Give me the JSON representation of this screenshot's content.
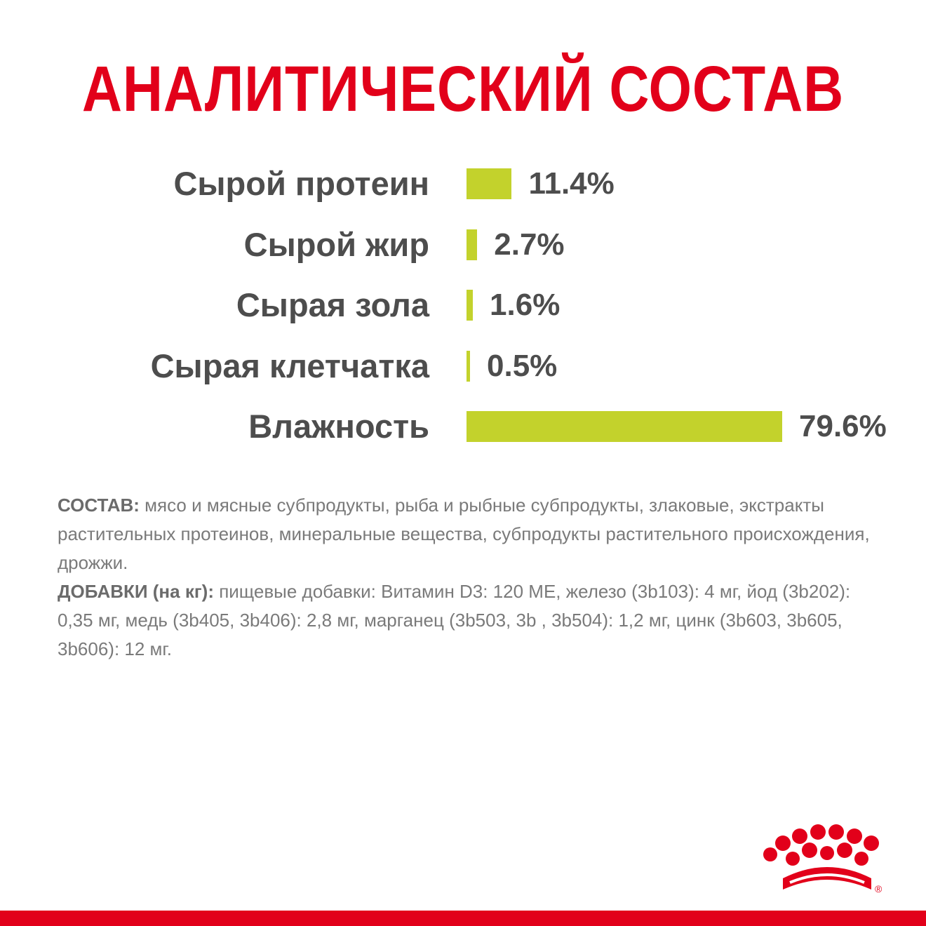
{
  "title": "АНАЛИТИЧЕСКИЙ СОСТАВ",
  "colors": {
    "title": "#e2001a",
    "bar": "#c3d22c",
    "label": "#4d4d4d",
    "body_text": "#7a7a7a",
    "brand_red": "#e2001a"
  },
  "chart_data": {
    "type": "bar",
    "orientation": "horizontal",
    "categories": [
      "Сырой протеин",
      "Сырой жир",
      "Сырая зола",
      "Сырая клетчатка",
      "Влажность"
    ],
    "values": [
      11.4,
      2.7,
      1.6,
      0.5,
      79.6
    ],
    "value_labels": [
      "11.4%",
      "2.7%",
      "1.6%",
      "0.5%",
      "79.6%"
    ],
    "unit": "%",
    "grid": false,
    "legend": "none"
  },
  "composition": {
    "ingredients_label": "СОСТАВ:",
    "ingredients_text": " мясо и мясные субпродукты, рыба и рыбные субпродукты, злаковые, экстракты растительных протеинов, минеральные вещества, субпродукты растительного происхождения, дрожжи.",
    "additives_label": "ДОБАВКИ (на кг):",
    "additives_text": " пищевые добавки: Витамин D3: 120 МЕ, железо (3b103): 4 мг, йод (3b202): 0,35 мг, медь (3b405, 3b406): 2,8 мг, марганец (3b503, 3b , 3b504): 1,2 мг, цинк (3b603, 3b605, 3b606): 12 мг."
  },
  "logo": {
    "icon": "crown-logo-icon",
    "mark": "®"
  }
}
